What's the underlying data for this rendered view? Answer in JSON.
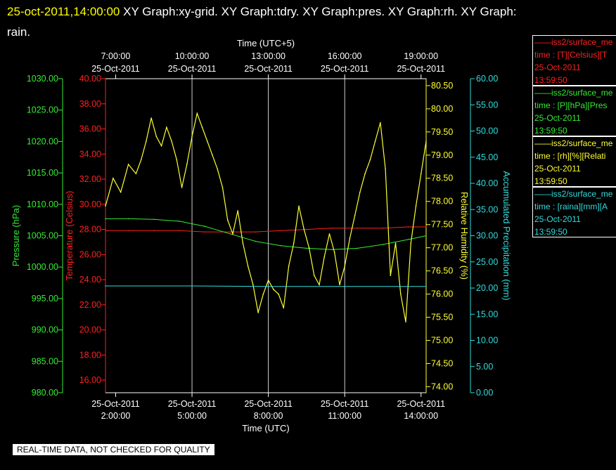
{
  "header": {
    "timestamp": "25-oct-2011,14:00:00",
    "rest": "XY Graph:xy-grid.  XY Graph:tdry.  XY Graph:pres.  XY Graph:rh.  XY Graph:",
    "line2": "rain."
  },
  "footer": "REAL-TIME DATA, NOT CHECKED FOR QUALITY",
  "legends": [
    {
      "name": "——iss2/surface_me",
      "units": "time : [T][Celsius][T",
      "date": "25-Oct-2011",
      "time": "13:59:50",
      "color": "#ff2020"
    },
    {
      "name": "——iss2/surface_me",
      "units": "time : [P][hPa][Pres",
      "date": "25-Oct-2011",
      "time": "13:59:50",
      "color": "#33ee33"
    },
    {
      "name": "——iss2/surface_me",
      "units": "time : [rh][%][Relati",
      "date": "25-Oct-2011",
      "time": "13:59:50",
      "color": "#ffff33"
    },
    {
      "name": "——iss2/surface_me",
      "units": "time : [raina][mm][A",
      "date": "25-Oct-2011",
      "time": "13:59:50",
      "color": "#33dddd"
    }
  ],
  "chart_data": {
    "type": "line",
    "top_axis_title": "Time (UTC+5)",
    "bottom_axis_title": "Time (UTC)",
    "x_ticks_bottom": [
      {
        "date": "25-Oct-2011",
        "time": "2:00:00"
      },
      {
        "date": "25-Oct-2011",
        "time": "5:00:00"
      },
      {
        "date": "25-Oct-2011",
        "time": "8:00:00"
      },
      {
        "date": "25-Oct-2011",
        "time": "11:00:00"
      },
      {
        "date": "25-Oct-2011",
        "time": "14:00:00"
      }
    ],
    "x_ticks_top": [
      {
        "time": "7:00:00",
        "date": "25-Oct-2011"
      },
      {
        "time": "10:00:00",
        "date": "25-Oct-2011"
      },
      {
        "time": "13:00:00",
        "date": "25-Oct-2011"
      },
      {
        "time": "16:00:00",
        "date": "25-Oct-2011"
      },
      {
        "time": "19:00:00",
        "date": "25-Oct-2011"
      }
    ],
    "x_range_hours_utc": [
      1.6,
      14.2
    ],
    "axes": {
      "pressure": {
        "label": "Pressure (hPa)",
        "color": "#33ee33",
        "ticks": [
          "980.00",
          "985.00",
          "990.00",
          "995.00",
          "1000.00",
          "1005.00",
          "1010.00",
          "1015.00",
          "1020.00",
          "1025.00",
          "1030.00"
        ],
        "range": [
          980,
          1030
        ]
      },
      "temperature": {
        "label": "Temperature (Celsius)",
        "color": "#ff2020",
        "ticks": [
          "16.00",
          "18.00",
          "20.00",
          "22.00",
          "24.00",
          "26.00",
          "28.00",
          "30.00",
          "32.00",
          "34.00",
          "36.00",
          "38.00",
          "40.00"
        ],
        "range": [
          15.0,
          40.0
        ]
      },
      "humidity": {
        "label": "Relative Humidity (%)",
        "color": "#ffff33",
        "ticks": [
          "74.00",
          "74.50",
          "75.00",
          "75.50",
          "76.00",
          "76.50",
          "77.00",
          "77.50",
          "78.00",
          "78.50",
          "79.00",
          "79.50",
          "80.00",
          "80.50"
        ],
        "range": [
          73.87,
          80.65
        ]
      },
      "precip": {
        "label": "Accumulated Precipitation (mm)",
        "color": "#33dddd",
        "ticks": [
          "0.00",
          "5.00",
          "10.00",
          "15.00",
          "20.00",
          "25.00",
          "30.00",
          "35.00",
          "40.00",
          "45.00",
          "50.00",
          "55.00",
          "60.00"
        ],
        "range": [
          0,
          60
        ]
      }
    },
    "series": [
      {
        "name": "tdry",
        "axis": "temperature",
        "color": "#ff2020",
        "x": [
          1.6,
          2.5,
          3.5,
          4.5,
          5.5,
          6.5,
          7.5,
          8.5,
          9.5,
          10.5,
          11.5,
          12.5,
          13.5,
          14.2
        ],
        "y": [
          27.9,
          27.9,
          27.9,
          27.9,
          27.8,
          27.8,
          27.8,
          27.9,
          28.0,
          28.1,
          28.1,
          28.1,
          28.2,
          28.2
        ]
      },
      {
        "name": "pres",
        "axis": "pressure",
        "color": "#33ee33",
        "x": [
          1.6,
          2.5,
          3.5,
          4.5,
          5.5,
          6.5,
          7.5,
          8.5,
          9.5,
          10.5,
          11.5,
          12.5,
          13.5,
          14.2
        ],
        "y": [
          1007.7,
          1007.7,
          1007.6,
          1007.3,
          1006.5,
          1005.3,
          1004.1,
          1003.4,
          1003.0,
          1002.8,
          1003.0,
          1003.6,
          1004.4,
          1005.0
        ]
      },
      {
        "name": "rh",
        "axis": "humidity",
        "color": "#ffff33",
        "x": [
          1.6,
          1.9,
          2.2,
          2.5,
          2.8,
          3.0,
          3.2,
          3.4,
          3.6,
          3.8,
          4.0,
          4.2,
          4.4,
          4.6,
          4.8,
          5.0,
          5.2,
          5.4,
          5.6,
          5.8,
          6.0,
          6.2,
          6.4,
          6.6,
          6.8,
          7.0,
          7.2,
          7.4,
          7.6,
          7.8,
          8.0,
          8.2,
          8.4,
          8.6,
          8.8,
          9.0,
          9.2,
          9.4,
          9.6,
          9.8,
          10.0,
          10.2,
          10.4,
          10.6,
          10.8,
          11.0,
          11.2,
          11.4,
          11.6,
          11.8,
          12.0,
          12.2,
          12.4,
          12.6,
          12.8,
          13.0,
          13.2,
          13.4,
          13.6,
          13.8,
          14.0,
          14.2
        ],
        "y": [
          77.9,
          78.5,
          78.2,
          78.8,
          78.6,
          78.9,
          79.3,
          79.8,
          79.4,
          79.2,
          79.6,
          79.3,
          78.9,
          78.3,
          78.8,
          79.4,
          79.9,
          79.6,
          79.3,
          79.0,
          78.7,
          78.3,
          77.6,
          77.3,
          77.8,
          77.1,
          76.6,
          76.2,
          75.6,
          76.0,
          76.3,
          76.1,
          76.0,
          75.7,
          76.6,
          77.1,
          77.9,
          77.4,
          77.0,
          76.4,
          76.2,
          76.8,
          77.3,
          76.9,
          76.2,
          76.6,
          77.2,
          77.7,
          78.2,
          78.6,
          78.9,
          79.3,
          79.7,
          78.7,
          76.4,
          77.1,
          76.0,
          75.4,
          77.1,
          77.9,
          78.6,
          79.3
        ]
      },
      {
        "name": "rain",
        "axis": "precip",
        "color": "#33dddd",
        "x": [
          1.6,
          5.0,
          8.0,
          11.0,
          14.2
        ],
        "y": [
          20.4,
          20.4,
          20.3,
          20.3,
          20.3
        ]
      }
    ]
  }
}
